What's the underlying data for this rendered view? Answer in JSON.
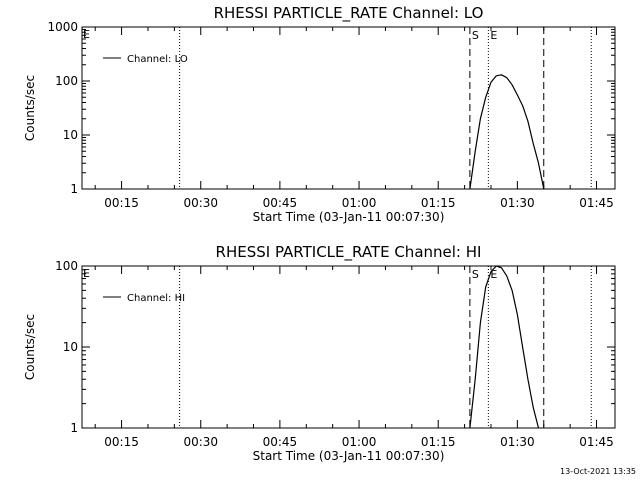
{
  "footer": {
    "timestamp": "13-Oct-2021 13:35"
  },
  "chart_data": [
    {
      "type": "line",
      "title": "RHESSI PARTICLE_RATE Channel: LO",
      "xlabel": "Start Time (03-Jan-11 00:07:30)",
      "ylabel": "Counts/sec",
      "yscale": "log",
      "ylim": [
        1,
        1000
      ],
      "y_ticks": [
        "1",
        "10",
        "100",
        "1000"
      ],
      "xlim": [
        "00:07:30",
        "01:48:30"
      ],
      "x_ticks": [
        "00:15",
        "00:30",
        "00:45",
        "01:00",
        "01:15",
        "01:30",
        "01:45"
      ],
      "grid": false,
      "legend": {
        "position": "top-left",
        "entries": [
          "Channel: LO"
        ]
      },
      "series": [
        {
          "name": "Channel: LO",
          "x": [
            "01:21:00",
            "01:21:30",
            "01:22:00",
            "01:23:00",
            "01:24:00",
            "01:25:00",
            "01:26:00",
            "01:27:00",
            "01:28:00",
            "01:29:00",
            "01:30:00",
            "01:31:00",
            "01:32:00",
            "01:33:00",
            "01:34:00",
            "01:35:00"
          ],
          "y": [
            1,
            2.2,
            5,
            20,
            50,
            95,
            125,
            130,
            115,
            85,
            55,
            35,
            18,
            7,
            3,
            1
          ]
        }
      ],
      "dashed_lines": [
        {
          "x": "01:21:00",
          "label": "S"
        },
        {
          "x": "01:35:00",
          "label": ""
        }
      ],
      "dotted_lines": [
        {
          "x": "00:26:00",
          "label": ""
        },
        {
          "x": "01:24:30",
          "label": "E"
        },
        {
          "x": "01:44:00",
          "label": ""
        }
      ],
      "corner_mark": "E"
    },
    {
      "type": "line",
      "title": "RHESSI PARTICLE_RATE Channel: HI",
      "xlabel": "Start Time (03-Jan-11 00:07:30)",
      "ylabel": "Counts/sec",
      "yscale": "log",
      "ylim": [
        1,
        100
      ],
      "y_ticks": [
        "1",
        "10",
        "100"
      ],
      "xlim": [
        "00:07:30",
        "01:48:30"
      ],
      "x_ticks": [
        "00:15",
        "00:30",
        "00:45",
        "01:00",
        "01:15",
        "01:30",
        "01:45"
      ],
      "grid": false,
      "legend": {
        "position": "top-left",
        "entries": [
          "Channel: HI"
        ]
      },
      "series": [
        {
          "name": "Channel: HI",
          "x": [
            "01:21:00",
            "01:22:00",
            "01:23:00",
            "01:24:00",
            "01:25:00",
            "01:26:00",
            "01:27:00",
            "01:28:00",
            "01:29:00",
            "01:30:00",
            "01:31:00",
            "01:32:00",
            "01:33:00",
            "01:34:00"
          ],
          "y": [
            1,
            4,
            20,
            55,
            85,
            100,
            95,
            75,
            50,
            25,
            10,
            4,
            1.8,
            1
          ]
        }
      ],
      "dashed_lines": [
        {
          "x": "01:21:00",
          "label": "S"
        },
        {
          "x": "01:35:00",
          "label": ""
        }
      ],
      "dotted_lines": [
        {
          "x": "00:26:00",
          "label": ""
        },
        {
          "x": "01:24:30",
          "label": "E"
        },
        {
          "x": "01:44:00",
          "label": ""
        }
      ],
      "corner_mark": "E"
    }
  ]
}
